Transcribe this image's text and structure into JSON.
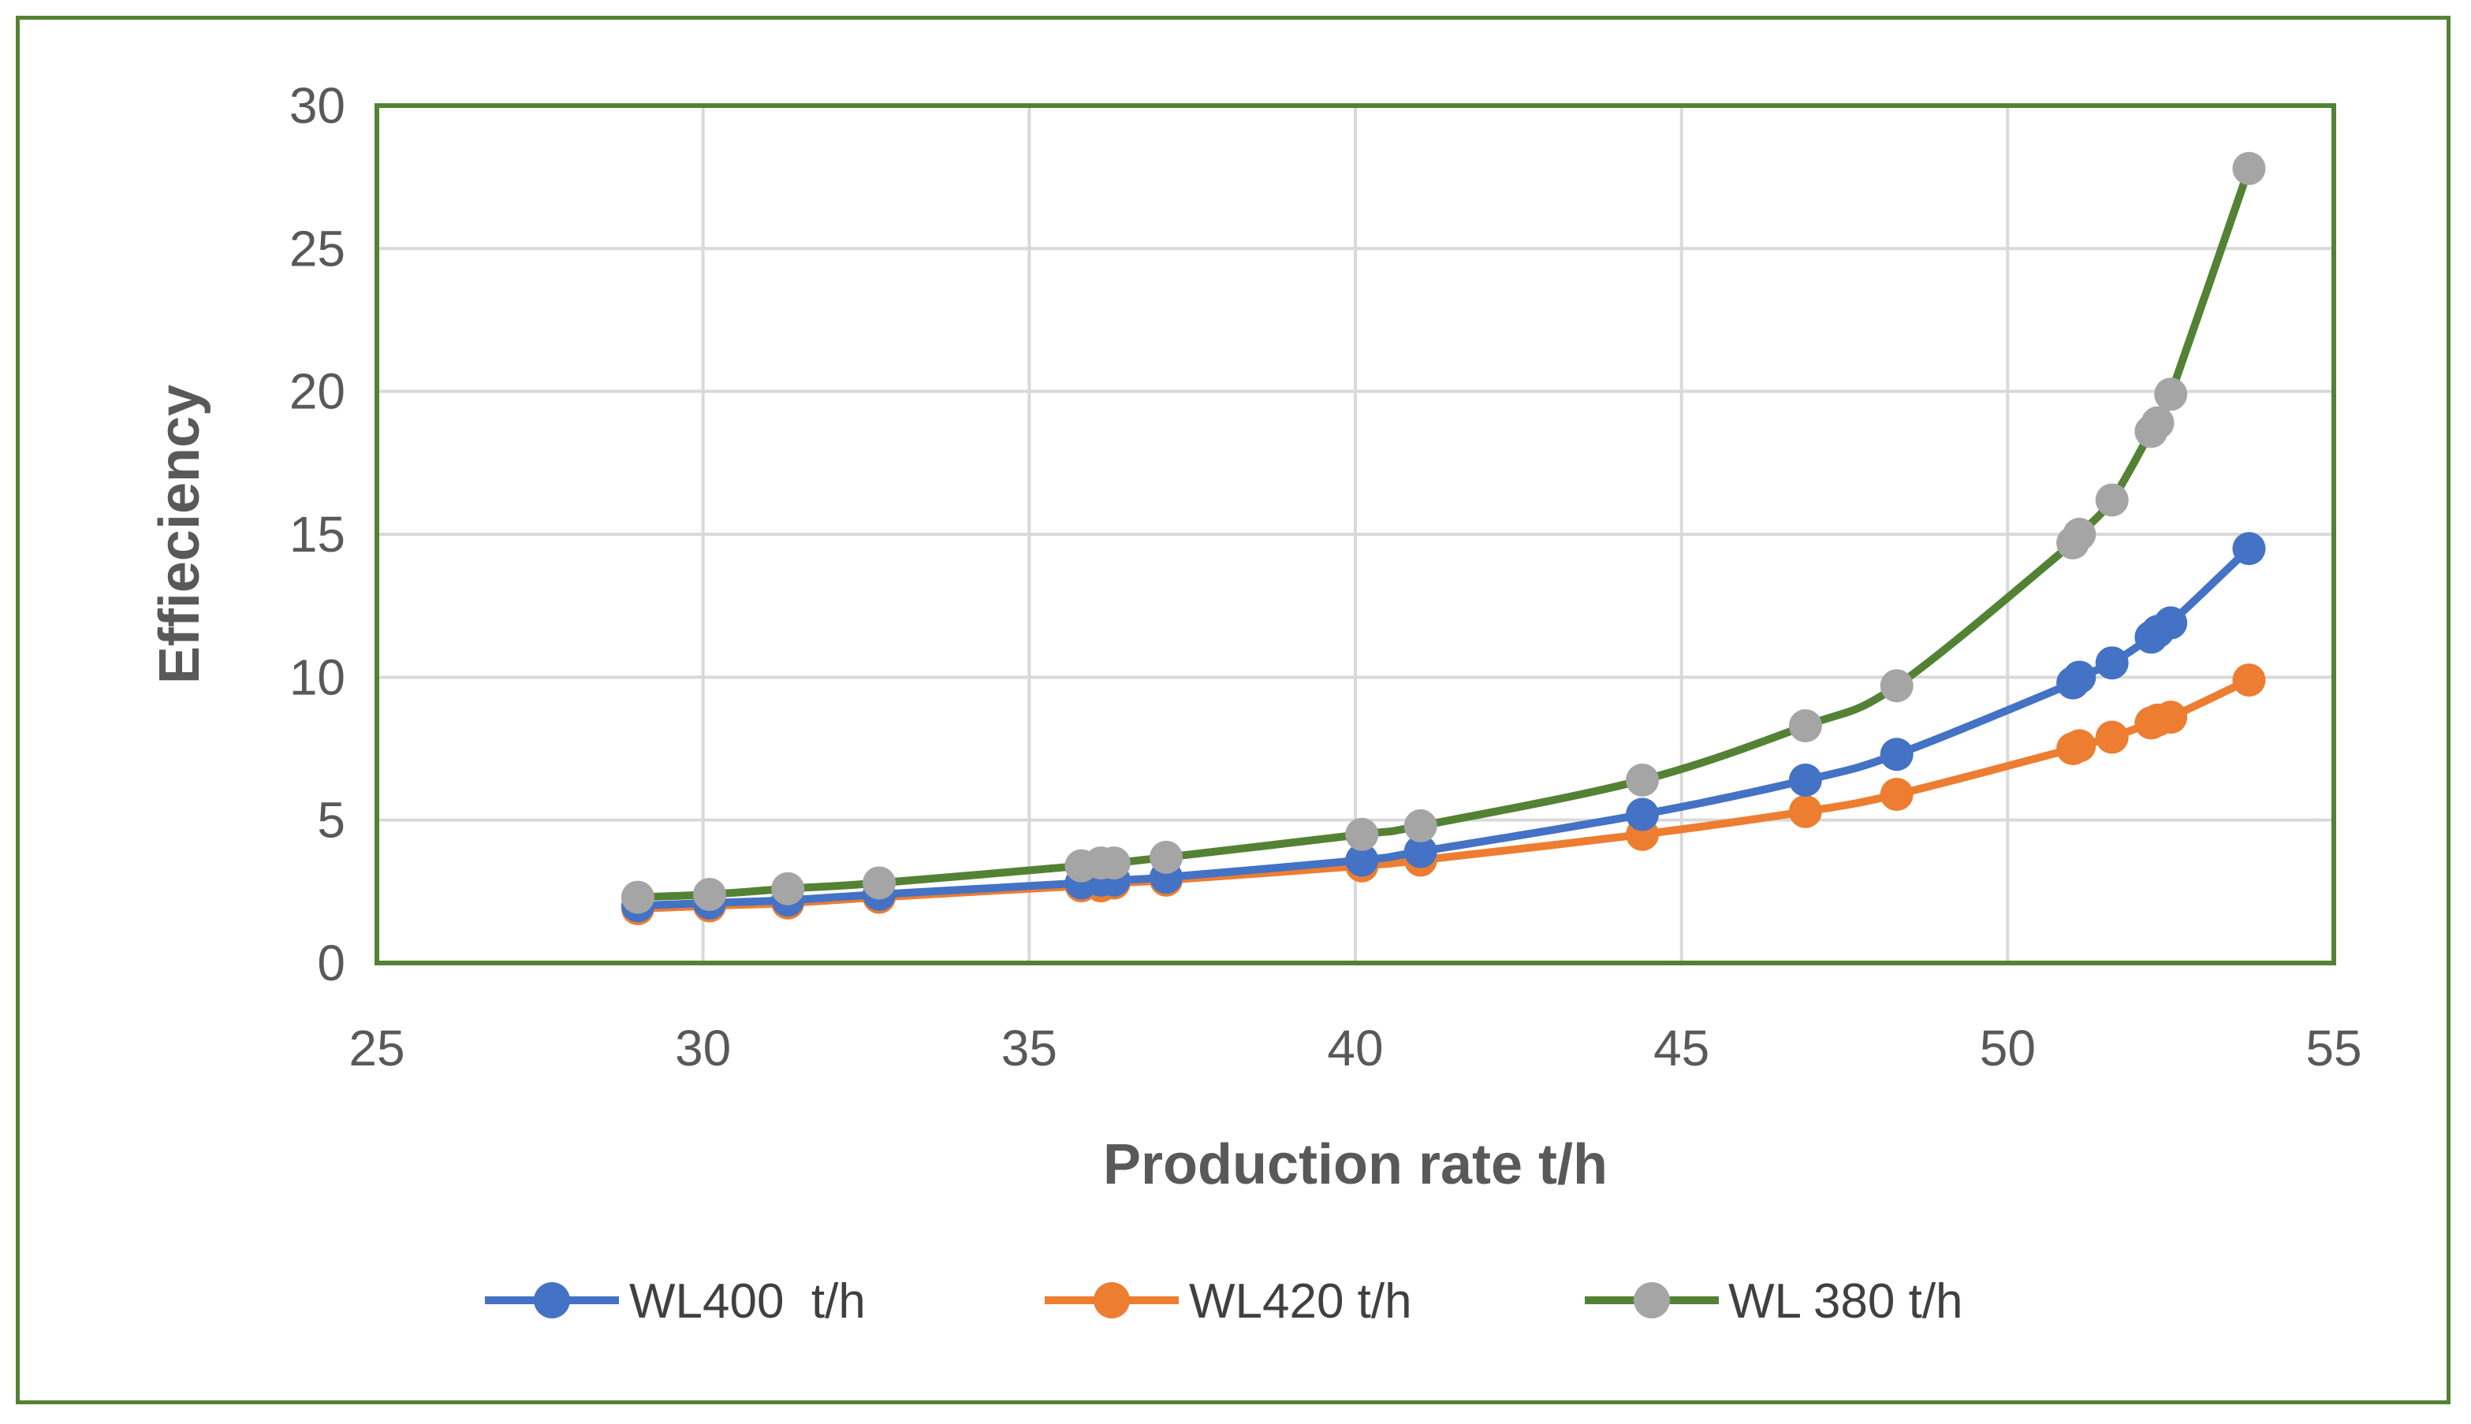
{
  "chart_data": {
    "type": "line",
    "title": "",
    "xlabel": "Production rate t/h",
    "ylabel": "Effieciency",
    "xlim": [
      25,
      55
    ],
    "ylim": [
      0,
      30
    ],
    "x_ticks": [
      25,
      30,
      35,
      40,
      45,
      50,
      55
    ],
    "y_ticks": [
      0,
      5,
      10,
      15,
      20,
      25,
      30
    ],
    "grid": true,
    "legend_position": "bottom",
    "series": [
      {
        "name": "WL400  t/h",
        "color": "#4472C4",
        "x": [
          29.0,
          30.1,
          31.3,
          32.7,
          35.8,
          36.1,
          36.3,
          37.1,
          40.1,
          41.0,
          44.4,
          46.9,
          48.3,
          51.0,
          51.1,
          51.6,
          52.2,
          52.3,
          52.5,
          53.7
        ],
        "values": [
          2.0,
          2.1,
          2.2,
          2.4,
          2.8,
          2.9,
          2.9,
          3.0,
          3.6,
          3.9,
          5.2,
          6.4,
          7.3,
          9.8,
          10.0,
          10.5,
          11.4,
          11.6,
          11.9,
          14.5
        ]
      },
      {
        "name": "WL420 t/h",
        "color": "#ED7D31",
        "x": [
          29.0,
          30.1,
          31.3,
          32.7,
          35.8,
          36.1,
          36.3,
          37.1,
          40.1,
          41.0,
          44.4,
          46.9,
          48.3,
          51.0,
          51.1,
          51.6,
          52.2,
          52.3,
          52.5,
          53.7
        ],
        "values": [
          1.9,
          2.0,
          2.1,
          2.3,
          2.7,
          2.7,
          2.8,
          2.9,
          3.4,
          3.6,
          4.5,
          5.3,
          5.9,
          7.5,
          7.6,
          7.9,
          8.4,
          8.5,
          8.6,
          9.9
        ]
      },
      {
        "name": "WL 380 t/h",
        "color": "#548235",
        "marker_color": "#A5A5A5",
        "x": [
          29.0,
          30.1,
          31.3,
          32.7,
          35.8,
          36.1,
          36.3,
          37.1,
          40.1,
          41.0,
          44.4,
          46.9,
          48.3,
          51.0,
          51.1,
          51.6,
          52.2,
          52.3,
          52.5,
          53.7
        ],
        "values": [
          2.3,
          2.4,
          2.6,
          2.8,
          3.4,
          3.5,
          3.5,
          3.7,
          4.5,
          4.8,
          6.4,
          8.3,
          9.7,
          14.7,
          15.0,
          16.2,
          18.6,
          18.9,
          19.9,
          27.8
        ]
      }
    ]
  }
}
